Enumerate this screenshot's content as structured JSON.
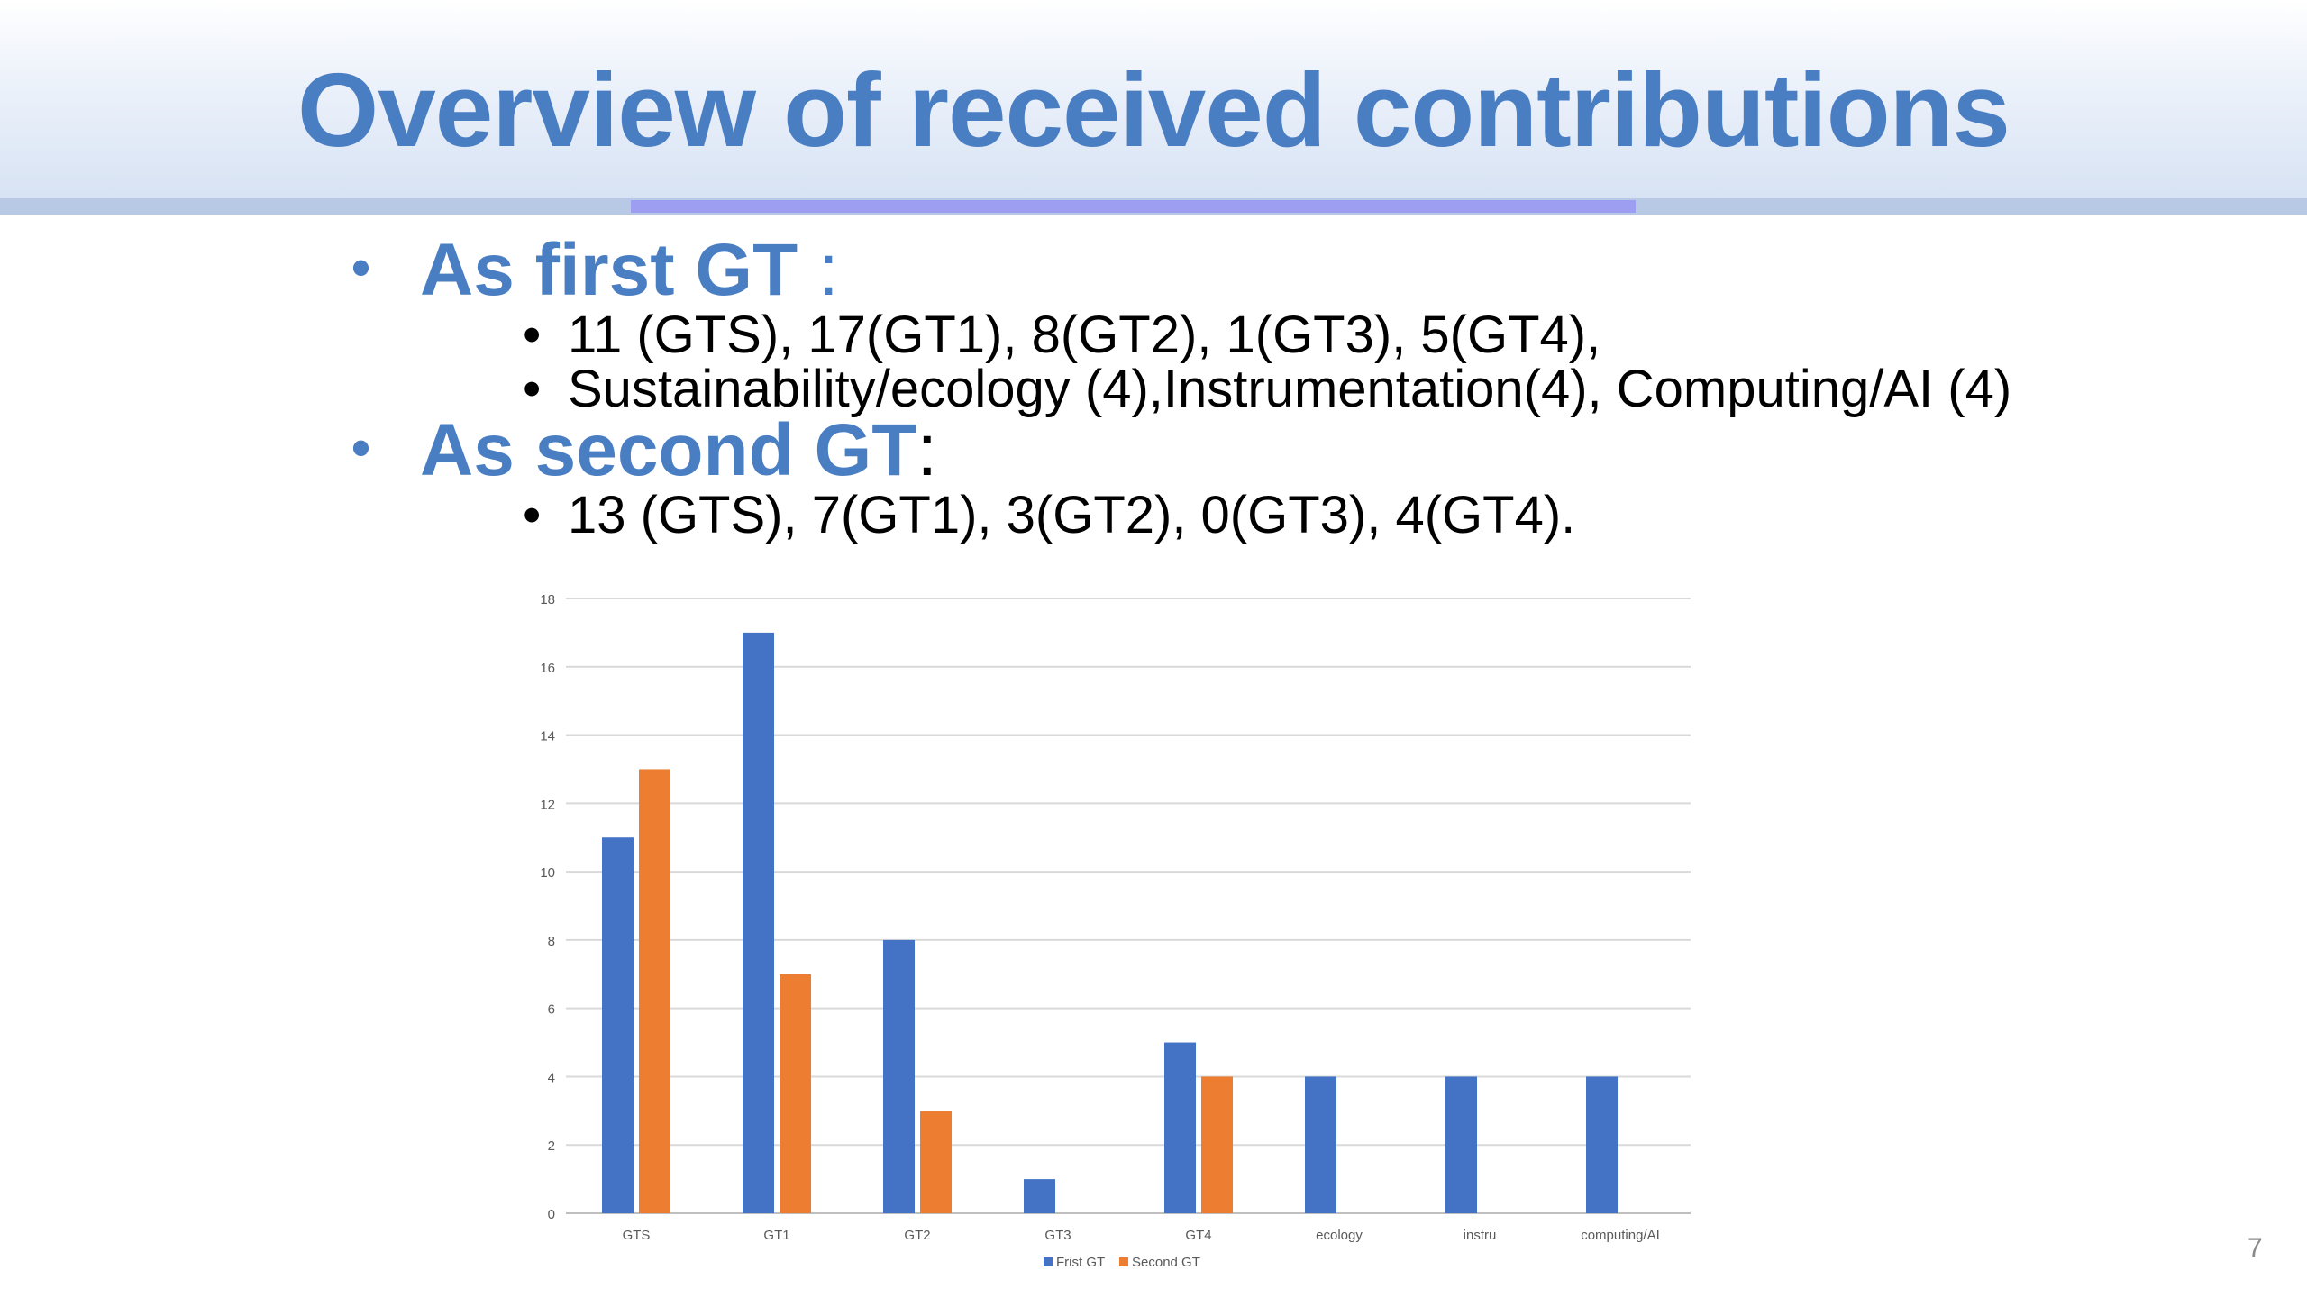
{
  "slide": {
    "title": "Overview of received contributions",
    "page_number": "7",
    "bullets": [
      {
        "head": "As first GT",
        "suffix": " :",
        "sub": [
          "11 (GTS), 17(GT1), 8(GT2), 1(GT3), 5(GT4),",
          "Sustainability/ecology (4),Instrumentation(4), Computing/AI (4)"
        ]
      },
      {
        "head": "As second GT",
        "suffix": ":",
        "sub": [
          "13 (GTS), 7(GT1), 3(GT2), 0(GT3), 4(GT4)."
        ]
      }
    ]
  },
  "chart_data": {
    "type": "bar",
    "categories": [
      "GTS",
      "GT1",
      "GT2",
      "GT3",
      "GT4",
      "ecology",
      "instru",
      "computing/AI"
    ],
    "series": [
      {
        "name": "Frist GT",
        "values": [
          11,
          17,
          8,
          1,
          5,
          4,
          4,
          4
        ],
        "color": "#4472c4"
      },
      {
        "name": "Second GT",
        "values": [
          13,
          7,
          3,
          0,
          4,
          null,
          null,
          null
        ],
        "color": "#ed7d31"
      }
    ],
    "ylim": [
      0,
      18
    ],
    "yticks": [
      0,
      2,
      4,
      6,
      8,
      10,
      12,
      14,
      16,
      18
    ],
    "grid": true,
    "legend": "bottom",
    "title": "",
    "xlabel": "",
    "ylabel": ""
  }
}
